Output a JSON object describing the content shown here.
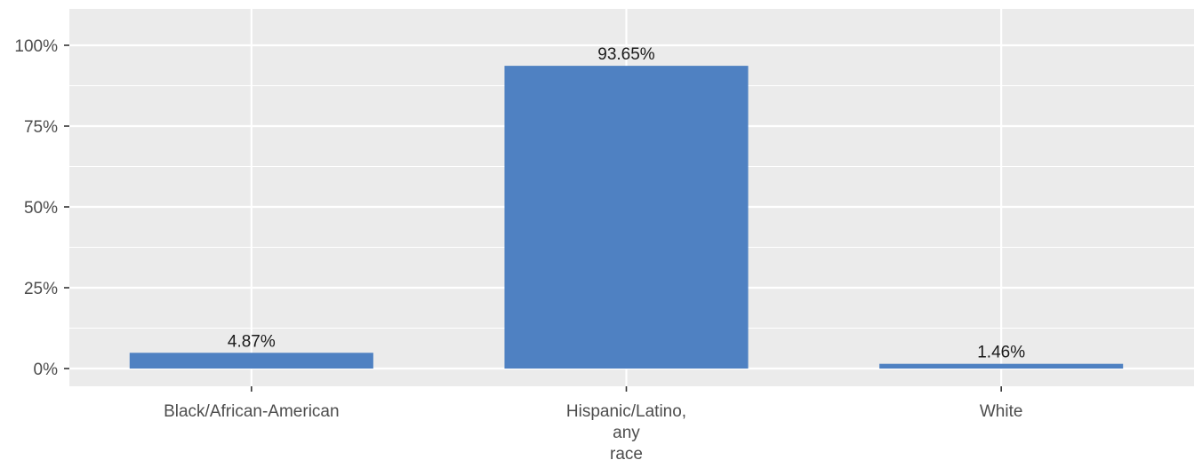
{
  "chart_data": {
    "type": "bar",
    "categories": [
      [
        "Black/African-American"
      ],
      [
        "Hispanic/Latino,",
        "any",
        "race"
      ],
      [
        "White"
      ]
    ],
    "values": [
      4.87,
      93.65,
      1.46
    ],
    "value_labels": [
      "4.87%",
      "93.65%",
      "1.46%"
    ],
    "ylim": [
      0,
      100
    ],
    "yticks": [
      0,
      25,
      50,
      75,
      100
    ],
    "ytick_labels": [
      "0%",
      "25%",
      "50%",
      "75%",
      "100%"
    ],
    "title": "",
    "xlabel": "",
    "ylabel": "",
    "grid": true,
    "bar_color": "#4F81C2",
    "panel_color": "#EBEBEB",
    "grid_color": "#FFFFFF"
  }
}
